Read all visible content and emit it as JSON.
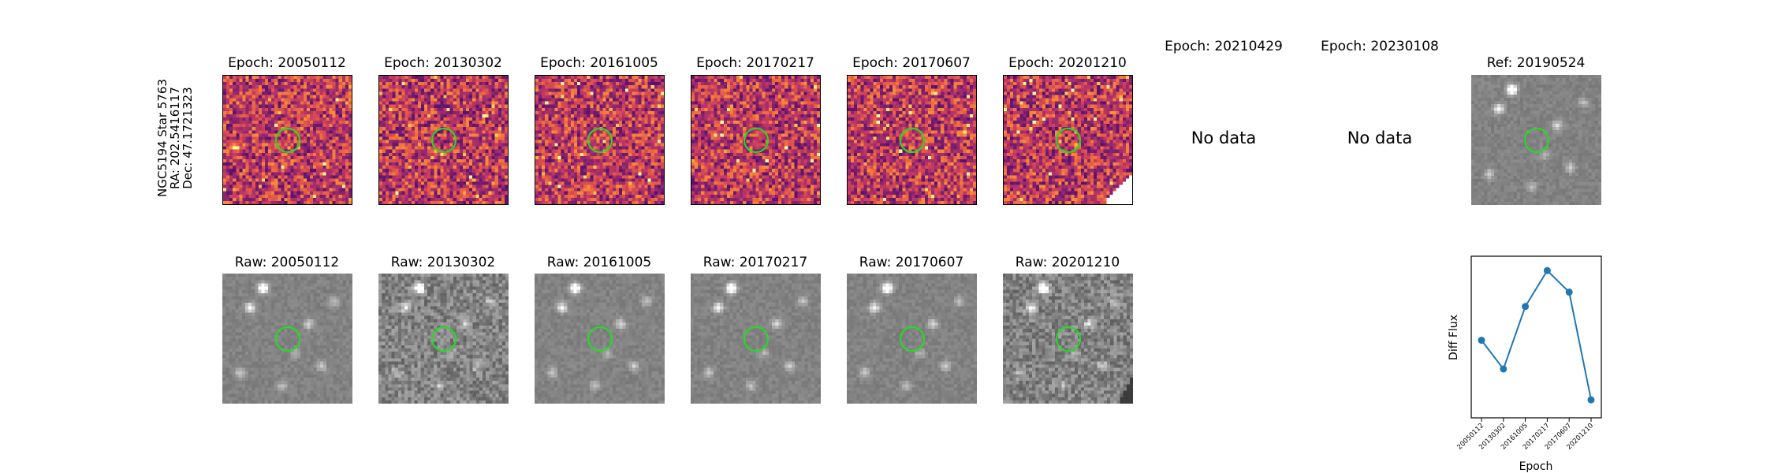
{
  "star_label": [
    "NGC5194 Star 5763",
    "RA: 202.5416117",
    "Dec: 47.1721323"
  ],
  "diff_titles": [
    "Epoch: 20050112",
    "Epoch: 20130302",
    "Epoch: 20161005",
    "Epoch: 20170217",
    "Epoch: 20170607",
    "Epoch: 20201210",
    "Epoch: 20210429",
    "Epoch: 20230108"
  ],
  "raw_titles": [
    "Raw: 20050112",
    "Raw: 20130302",
    "Raw: 20161005",
    "Raw: 20170217",
    "Raw: 20170607",
    "Raw: 20201210"
  ],
  "no_data_text": "No data",
  "ref_title": "Ref: 20190524",
  "colors": {
    "circle": "#22dd22",
    "line": "#1f77b4"
  },
  "chart_data": {
    "type": "line",
    "ylabel": "Diff Flux",
    "xlabel": "Epoch",
    "categories": [
      "20050112",
      "20130302",
      "20161005",
      "20170217",
      "20170607",
      "20201210"
    ],
    "values": [
      0.28,
      -0.12,
      0.75,
      1.25,
      0.95,
      -0.55
    ],
    "ylim": [
      -0.8,
      1.45
    ],
    "grid": false
  }
}
